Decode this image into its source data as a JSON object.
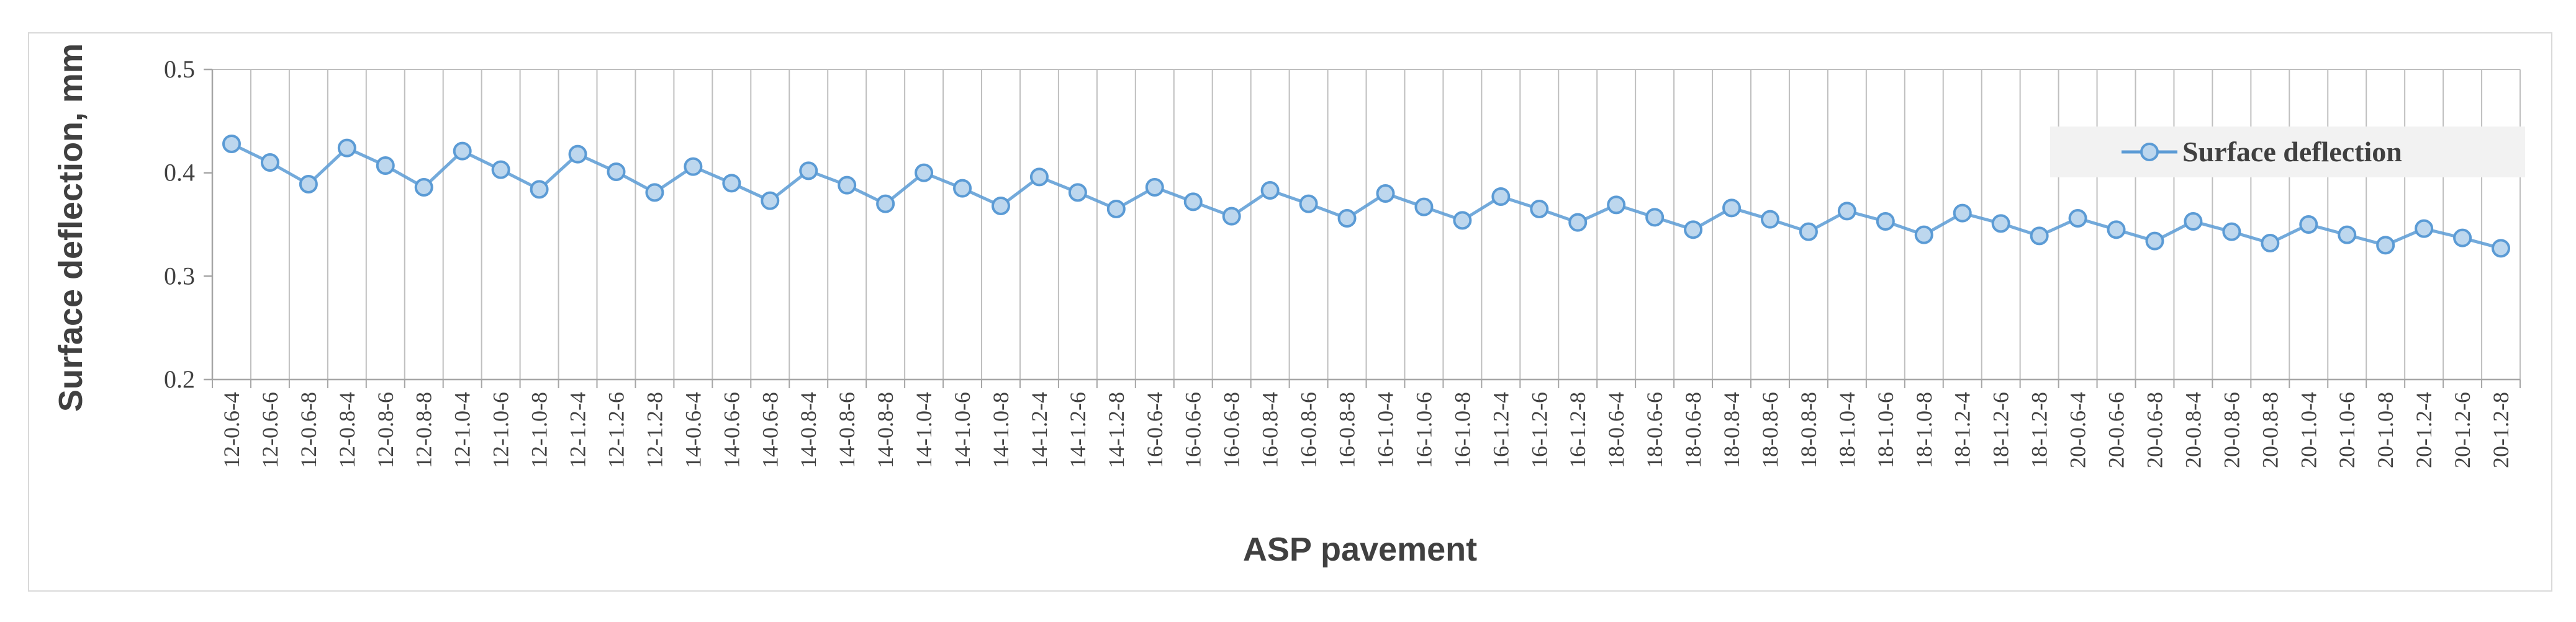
{
  "chart_data": {
    "type": "line",
    "xlabel": "ASP pavement",
    "ylabel": "Surface deflection, mm",
    "ylim": [
      0.2,
      0.5
    ],
    "yticks": [
      "0.2",
      "0.3",
      "0.4",
      "0.5"
    ],
    "grid": "vertical",
    "legend_position": "top-right",
    "categories": [
      "12-0.6-4",
      "12-0.6-6",
      "12-0.6-8",
      "12-0.8-4",
      "12-0.8-6",
      "12-0.8-8",
      "12-1.0-4",
      "12-1.0-6",
      "12-1.0-8",
      "12-1.2-4",
      "12-1.2-6",
      "12-1.2-8",
      "14-0.6-4",
      "14-0.6-6",
      "14-0.6-8",
      "14-0.8-4",
      "14-0.8-6",
      "14-0.8-8",
      "14-1.0-4",
      "14-1.0-6",
      "14-1.0-8",
      "14-1.2-4",
      "14-1.2-6",
      "14-1.2-8",
      "16-0.6-4",
      "16-0.6-6",
      "16-0.6-8",
      "16-0.8-4",
      "16-0.8-6",
      "16-0.8-8",
      "16-1.0-4",
      "16-1.0-6",
      "16-1.0-8",
      "16-1.2-4",
      "16-1.2-6",
      "16-1.2-8",
      "18-0.6-4",
      "18-0.6-6",
      "18-0.6-8",
      "18-0.8-4",
      "18-0.8-6",
      "18-0.8-8",
      "18-1.0-4",
      "18-1.0-6",
      "18-1.0-8",
      "18-1.2-4",
      "18-1.2-6",
      "18-1.2-8",
      "20-0.6-4",
      "20-0.6-6",
      "20-0.6-8",
      "20-0.8-4",
      "20-0.8-6",
      "20-0.8-8",
      "20-1.0-4",
      "20-1.0-6",
      "20-1.0-8",
      "20-1.2-4",
      "20-1.2-6",
      "20-1.2-8"
    ],
    "series": [
      {
        "name": "Surface deflection",
        "color": "#5b9bd5",
        "marker_fill": "#bdd7ee",
        "values": [
          0.428,
          0.41,
          0.389,
          0.424,
          0.407,
          0.386,
          0.421,
          0.403,
          0.384,
          0.418,
          0.401,
          0.381,
          0.406,
          0.39,
          0.373,
          0.402,
          0.388,
          0.37,
          0.4,
          0.385,
          0.368,
          0.396,
          0.381,
          0.365,
          0.386,
          0.372,
          0.358,
          0.383,
          0.37,
          0.356,
          0.38,
          0.367,
          0.354,
          0.377,
          0.365,
          0.352,
          0.369,
          0.357,
          0.345,
          0.366,
          0.355,
          0.343,
          0.363,
          0.353,
          0.34,
          0.361,
          0.351,
          0.339,
          0.356,
          0.345,
          0.334,
          0.353,
          0.343,
          0.332,
          0.35,
          0.34,
          0.33,
          0.346,
          0.337,
          0.327
        ]
      }
    ]
  }
}
